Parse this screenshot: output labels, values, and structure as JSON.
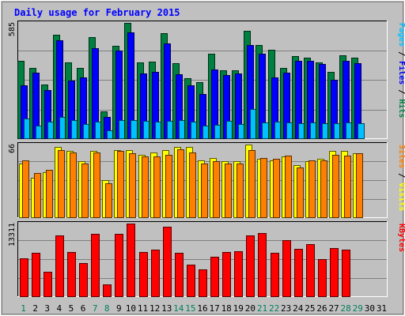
{
  "chart_data": {
    "title": "Daily usage for February 2015",
    "type": "bar",
    "days": [
      "1",
      "2",
      "3",
      "4",
      "5",
      "6",
      "7",
      "8",
      "9",
      "10",
      "11",
      "12",
      "13",
      "14",
      "15",
      "16",
      "17",
      "18",
      "19",
      "20",
      "21",
      "22",
      "23",
      "24",
      "25",
      "26",
      "27",
      "28",
      "29",
      "30",
      "31"
    ],
    "weekend_days": [
      "1",
      "7",
      "8",
      "14",
      "15",
      "21",
      "22",
      "28",
      "29"
    ],
    "panels": [
      {
        "id": "hits-files-pages",
        "max_label": "585",
        "side_labels": [
          {
            "text": "Pages",
            "color": "#00c0ff"
          },
          {
            "text": " / ",
            "color": "#000000"
          },
          {
            "text": "Files",
            "color": "#0000ff"
          },
          {
            "text": " / ",
            "color": "#000000"
          },
          {
            "text": "Hits",
            "color": "#008040"
          }
        ],
        "series": [
          {
            "name": "Hits",
            "color": "#008040",
            "values": [
              392,
              357,
              272,
              526,
              385,
              355,
              512,
              138,
              468,
              585,
              384,
              387,
              534,
              381,
              306,
              284,
              427,
              344,
              344,
              543,
              471,
              448,
              357,
              415,
              410,
              383,
              336,
              419,
              409,
              0,
              0
            ]
          },
          {
            "name": "Files",
            "color": "#0000ff",
            "values": [
              270,
              334,
              244,
              495,
              292,
              309,
              456,
              107,
              444,
              538,
              330,
              338,
              481,
              324,
              268,
              226,
              349,
              319,
              330,
              471,
              427,
              309,
              332,
              393,
              391,
              378,
              296,
              394,
              381,
              0,
              0
            ]
          },
          {
            "name": "Pages",
            "color": "#00c0ff",
            "values": [
              102,
              64,
              85,
              108,
              93,
              73,
              83,
              41,
              92,
              91,
              89,
              86,
              89,
              91,
              86,
              65,
              68,
              88,
              72,
              150,
              81,
              85,
              82,
              78,
              79,
              78,
              77,
              81,
              77,
              0,
              0
            ]
          }
        ]
      },
      {
        "id": "visits-sites",
        "max_label": "66",
        "side_labels": [
          {
            "text": "Sites",
            "color": "#ff8000"
          },
          {
            "text": " / ",
            "color": "#000000"
          },
          {
            "text": "Visits",
            "color": "#ffff00"
          }
        ],
        "series": [
          {
            "name": "Visits",
            "color": "#ffff00",
            "values": [
              49,
              36,
              41,
              64,
              60,
              51,
              60,
              34,
              61,
              61,
              57,
              59,
              61,
              64,
              64,
              52,
              54,
              51,
              51,
              66,
              53,
              52,
              55,
              47,
              51,
              53,
              60,
              60,
              58,
              0,
              0
            ]
          },
          {
            "name": "Sites",
            "color": "#ff8000",
            "values": [
              52,
              40,
              43,
              61,
              59,
              49,
              59,
              31,
              60,
              58,
              55,
              55,
              57,
              62,
              59,
              49,
              51,
              49,
              49,
              61,
              54,
              53,
              56,
              45,
              52,
              52,
              57,
              56,
              58,
              0,
              0
            ]
          }
        ]
      },
      {
        "id": "kbytes",
        "max_label": "13311",
        "side_labels": [
          {
            "text": "KBytes",
            "color": "#ff0000"
          }
        ],
        "series": [
          {
            "name": "KBytes",
            "color": "#ff0000",
            "values": [
              6880,
              7918,
              4419,
              11175,
              8091,
              6125,
              11480,
              2188,
              11477,
              13311,
              8151,
              8465,
              12743,
              7964,
              5855,
              4922,
              7167,
              8102,
              8201,
              11175,
              11580,
              8014,
              10313,
              8639,
              9565,
              6822,
              8836,
              8554,
              0,
              0,
              0
            ]
          }
        ]
      }
    ]
  }
}
